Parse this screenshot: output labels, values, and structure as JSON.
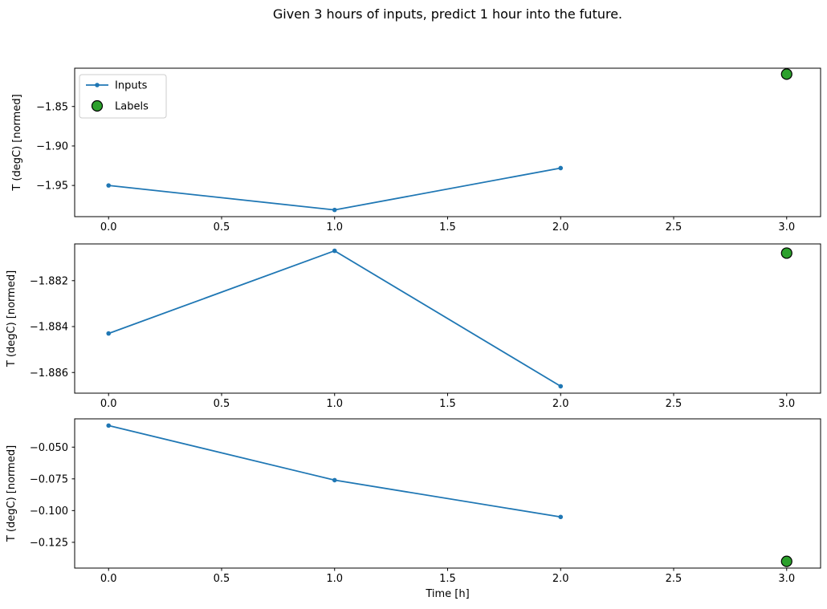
{
  "figure": {
    "title": "Given 3 hours of inputs, predict 1 hour into the future.",
    "background": "#ffffff"
  },
  "colors": {
    "inputs_line": "#1f77b4",
    "labels_fill": "#2ca02c",
    "labels_edge": "#000000",
    "axes_edge": "#000000",
    "legend_border": "#cccccc",
    "legend_background": "#ffffff"
  },
  "chart_data": [
    {
      "type": "line",
      "title": "",
      "xlabel": "",
      "ylabel": "T (degC) [normed]",
      "xlim": [
        -0.15,
        3.15
      ],
      "ylim": [
        -1.9895,
        -1.8015
      ],
      "grid": false,
      "x_ticks": [
        {
          "v": 0.0,
          "label": "0.0"
        },
        {
          "v": 0.5,
          "label": "0.5"
        },
        {
          "v": 1.0,
          "label": "1.0"
        },
        {
          "v": 1.5,
          "label": "1.5"
        },
        {
          "v": 2.0,
          "label": "2.0"
        },
        {
          "v": 2.5,
          "label": "2.5"
        },
        {
          "v": 3.0,
          "label": "3.0"
        }
      ],
      "y_ticks": [
        {
          "v": -1.85,
          "label": "−1.85"
        },
        {
          "v": -1.9,
          "label": "−1.90"
        },
        {
          "v": -1.95,
          "label": "−1.95"
        }
      ],
      "series": [
        {
          "name": "Inputs",
          "kind": "line",
          "x": [
            0,
            1,
            2
          ],
          "y": [
            -1.95,
            -1.981,
            -1.928
          ]
        },
        {
          "name": "Labels",
          "kind": "scatter",
          "x": [
            3
          ],
          "y": [
            -1.809
          ]
        }
      ],
      "legend": {
        "visible": true,
        "position": "upper left",
        "entries": [
          "Inputs",
          "Labels"
        ]
      }
    },
    {
      "type": "line",
      "title": "",
      "xlabel": "",
      "ylabel": "T (degC) [normed]",
      "xlim": [
        -0.15,
        3.15
      ],
      "ylim": [
        -1.8869,
        -1.8804
      ],
      "grid": false,
      "x_ticks": [
        {
          "v": 0.0,
          "label": "0.0"
        },
        {
          "v": 0.5,
          "label": "0.5"
        },
        {
          "v": 1.0,
          "label": "1.0"
        },
        {
          "v": 1.5,
          "label": "1.5"
        },
        {
          "v": 2.0,
          "label": "2.0"
        },
        {
          "v": 2.5,
          "label": "2.5"
        },
        {
          "v": 3.0,
          "label": "3.0"
        }
      ],
      "y_ticks": [
        {
          "v": -1.882,
          "label": "−1.882"
        },
        {
          "v": -1.884,
          "label": "−1.884"
        },
        {
          "v": -1.886,
          "label": "−1.886"
        }
      ],
      "series": [
        {
          "name": "Inputs",
          "kind": "line",
          "x": [
            0,
            1,
            2
          ],
          "y": [
            -1.8843,
            -1.8807,
            -1.8866
          ]
        },
        {
          "name": "Labels",
          "kind": "scatter",
          "x": [
            3
          ],
          "y": [
            -1.8808
          ]
        }
      ],
      "legend": {
        "visible": false,
        "position": "",
        "entries": []
      }
    },
    {
      "type": "line",
      "title": "",
      "xlabel": "Time [h]",
      "ylabel": "T (degC) [normed]",
      "xlim": [
        -0.15,
        3.15
      ],
      "ylim": [
        -0.1453,
        -0.0277
      ],
      "grid": false,
      "x_ticks": [
        {
          "v": 0.0,
          "label": "0.0"
        },
        {
          "v": 0.5,
          "label": "0.5"
        },
        {
          "v": 1.0,
          "label": "1.0"
        },
        {
          "v": 1.5,
          "label": "1.5"
        },
        {
          "v": 2.0,
          "label": "2.0"
        },
        {
          "v": 2.5,
          "label": "2.5"
        },
        {
          "v": 3.0,
          "label": "3.0"
        }
      ],
      "y_ticks": [
        {
          "v": -0.05,
          "label": "−0.050"
        },
        {
          "v": -0.075,
          "label": "−0.075"
        },
        {
          "v": -0.1,
          "label": "−0.100"
        },
        {
          "v": -0.125,
          "label": "−0.125"
        }
      ],
      "series": [
        {
          "name": "Inputs",
          "kind": "line",
          "x": [
            0,
            1,
            2
          ],
          "y": [
            -0.033,
            -0.076,
            -0.105
          ]
        },
        {
          "name": "Labels",
          "kind": "scatter",
          "x": [
            3
          ],
          "y": [
            -0.14
          ]
        }
      ],
      "legend": {
        "visible": false,
        "position": "",
        "entries": []
      }
    }
  ]
}
